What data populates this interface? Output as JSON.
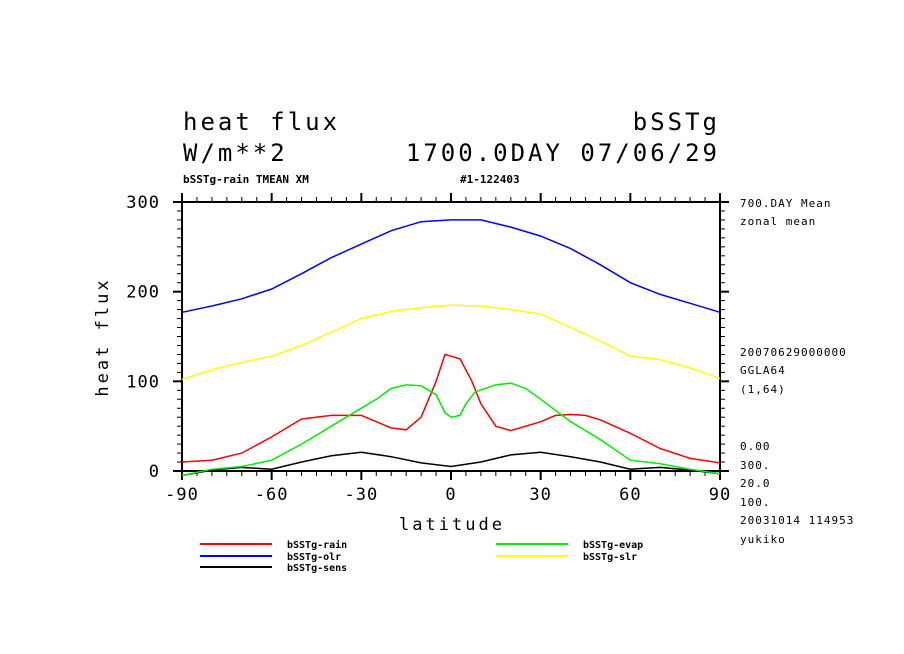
{
  "chart_data": {
    "type": "line",
    "title": "heat flux",
    "title_right": "bSSTg",
    "units": "W/m**2",
    "time_label": "1700.0DAY 07/06/29",
    "subtitle_left": "bSSTg-rain TMEAN XM",
    "subtitle_center": "#1-122403",
    "xlabel": "latitude",
    "ylabel": "heat flux",
    "xlim": [
      -90,
      90
    ],
    "ylim": [
      0,
      300
    ],
    "xticks": [
      -90,
      -60,
      -30,
      0,
      30,
      60,
      90
    ],
    "yticks": [
      0,
      100,
      200,
      300
    ],
    "xtick_labels": [
      "-90",
      "-60",
      "-30",
      "0",
      "30",
      "60",
      "90"
    ],
    "ytick_labels": [
      "0",
      "100",
      "200",
      "300"
    ],
    "side_info": [
      "700.DAY Mean",
      "zonal mean",
      "20070629000000",
      "GGLA64",
      "(1,64)",
      "0.00",
      "300.",
      "20.0",
      "100.",
      "20031014 114953",
      "yukiko"
    ],
    "legend_placement": "bottom",
    "series": [
      {
        "name": "bSSTg-rain",
        "color": "#ff0000",
        "x": [
          -90,
          -80,
          -70,
          -60,
          -50,
          -40,
          -30,
          -25,
          -20,
          -15,
          -10,
          -5,
          -2,
          0,
          3,
          7,
          10,
          15,
          20,
          30,
          35,
          40,
          45,
          50,
          60,
          70,
          80,
          90
        ],
        "y": [
          10,
          12,
          20,
          38,
          58,
          62,
          62,
          55,
          48,
          46,
          60,
          100,
          130,
          128,
          125,
          100,
          75,
          50,
          45,
          55,
          62,
          63,
          62,
          57,
          42,
          25,
          14,
          9
        ]
      },
      {
        "name": "bSSTg-olr",
        "color": "#0000ff",
        "x": [
          -90,
          -80,
          -70,
          -60,
          -50,
          -40,
          -30,
          -20,
          -10,
          0,
          10,
          20,
          30,
          40,
          50,
          60,
          70,
          80,
          90
        ],
        "y": [
          177,
          184,
          192,
          203,
          220,
          238,
          253,
          268,
          278,
          280,
          280,
          272,
          262,
          248,
          230,
          210,
          197,
          187,
          177
        ]
      },
      {
        "name": "bSSTg-sens",
        "color": "#000000",
        "x": [
          -90,
          -80,
          -70,
          -60,
          -50,
          -40,
          -30,
          -20,
          -10,
          0,
          10,
          20,
          30,
          40,
          50,
          60,
          65,
          70,
          80,
          90
        ],
        "y": [
          -5,
          1,
          4,
          2,
          10,
          17,
          21,
          16,
          9,
          5,
          10,
          18,
          21,
          16,
          10,
          2,
          3,
          4,
          1,
          -3
        ]
      },
      {
        "name": "bSSTg-evap",
        "color": "#00ee00",
        "x": [
          -90,
          -80,
          -70,
          -60,
          -50,
          -40,
          -30,
          -25,
          -20,
          -15,
          -10,
          -5,
          -2,
          0,
          3,
          5,
          8,
          15,
          20,
          25,
          30,
          40,
          50,
          60,
          70,
          80,
          90
        ],
        "y": [
          -5,
          2,
          5,
          12,
          30,
          50,
          70,
          80,
          92,
          96,
          95,
          85,
          65,
          60,
          62,
          75,
          88,
          96,
          98,
          92,
          80,
          55,
          35,
          12,
          8,
          2,
          -3
        ]
      },
      {
        "name": "bSSTg-slr",
        "color": "#ffff00",
        "x": [
          -90,
          -80,
          -70,
          -60,
          -50,
          -40,
          -30,
          -20,
          -10,
          0,
          10,
          20,
          30,
          40,
          50,
          60,
          70,
          80,
          90
        ],
        "y": [
          102,
          113,
          121,
          128,
          140,
          155,
          170,
          178,
          182,
          185,
          184,
          180,
          175,
          160,
          145,
          128,
          124,
          115,
          103
        ]
      }
    ]
  }
}
